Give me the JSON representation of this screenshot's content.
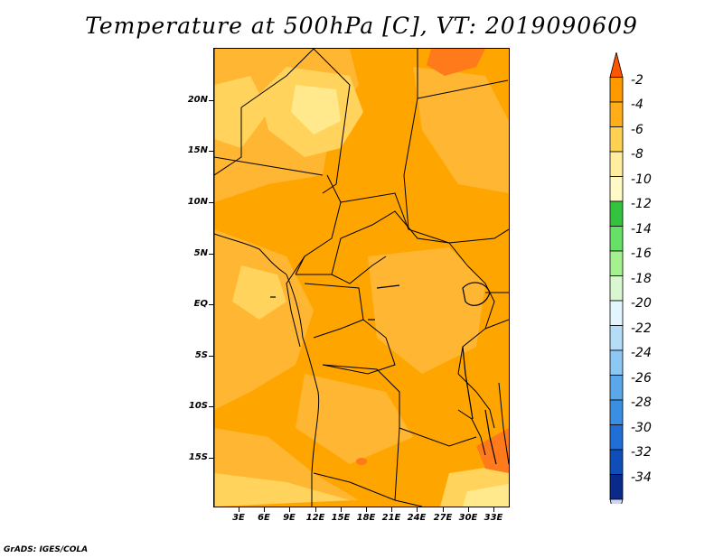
{
  "title": "Temperature at 500hPa [C], VT: 2019090609",
  "credit": "GrADS: IGES/COLA",
  "lat_labels": [
    "20N",
    "15N",
    "10N",
    "5N",
    "EQ",
    "5S",
    "10S",
    "15S"
  ],
  "lon_labels": [
    "3E",
    "6E",
    "9E",
    "12E",
    "15E",
    "18E",
    "21E",
    "24E",
    "27E",
    "30E",
    "33E"
  ],
  "colorbar": {
    "labels": [
      "-2",
      "-4",
      "-6",
      "-8",
      "-10",
      "-12",
      "-14",
      "-16",
      "-18",
      "-20",
      "-22",
      "-24",
      "-26",
      "-28",
      "-30",
      "-32",
      "-34"
    ],
    "colors": [
      "#ff5500",
      "#ff9900",
      "#ffae1a",
      "#ffd152",
      "#ffeda0",
      "#fffac6",
      "#33c33f",
      "#66e066",
      "#a5f08f",
      "#d9f7d0",
      "#e3f5ff",
      "#b6ddf7",
      "#8dc8f5",
      "#5aa8ea",
      "#3a8fe3",
      "#1f6fd6",
      "#0f4eb8",
      "#0a2a8a",
      "#cfd4f5"
    ]
  },
  "map": {
    "field_colors": {
      "dominant": "#ffa500",
      "medium": "#ffb733",
      "light": "#ffd35c",
      "pale": "#ffe98c",
      "hot": "#ff7a1a"
    }
  }
}
